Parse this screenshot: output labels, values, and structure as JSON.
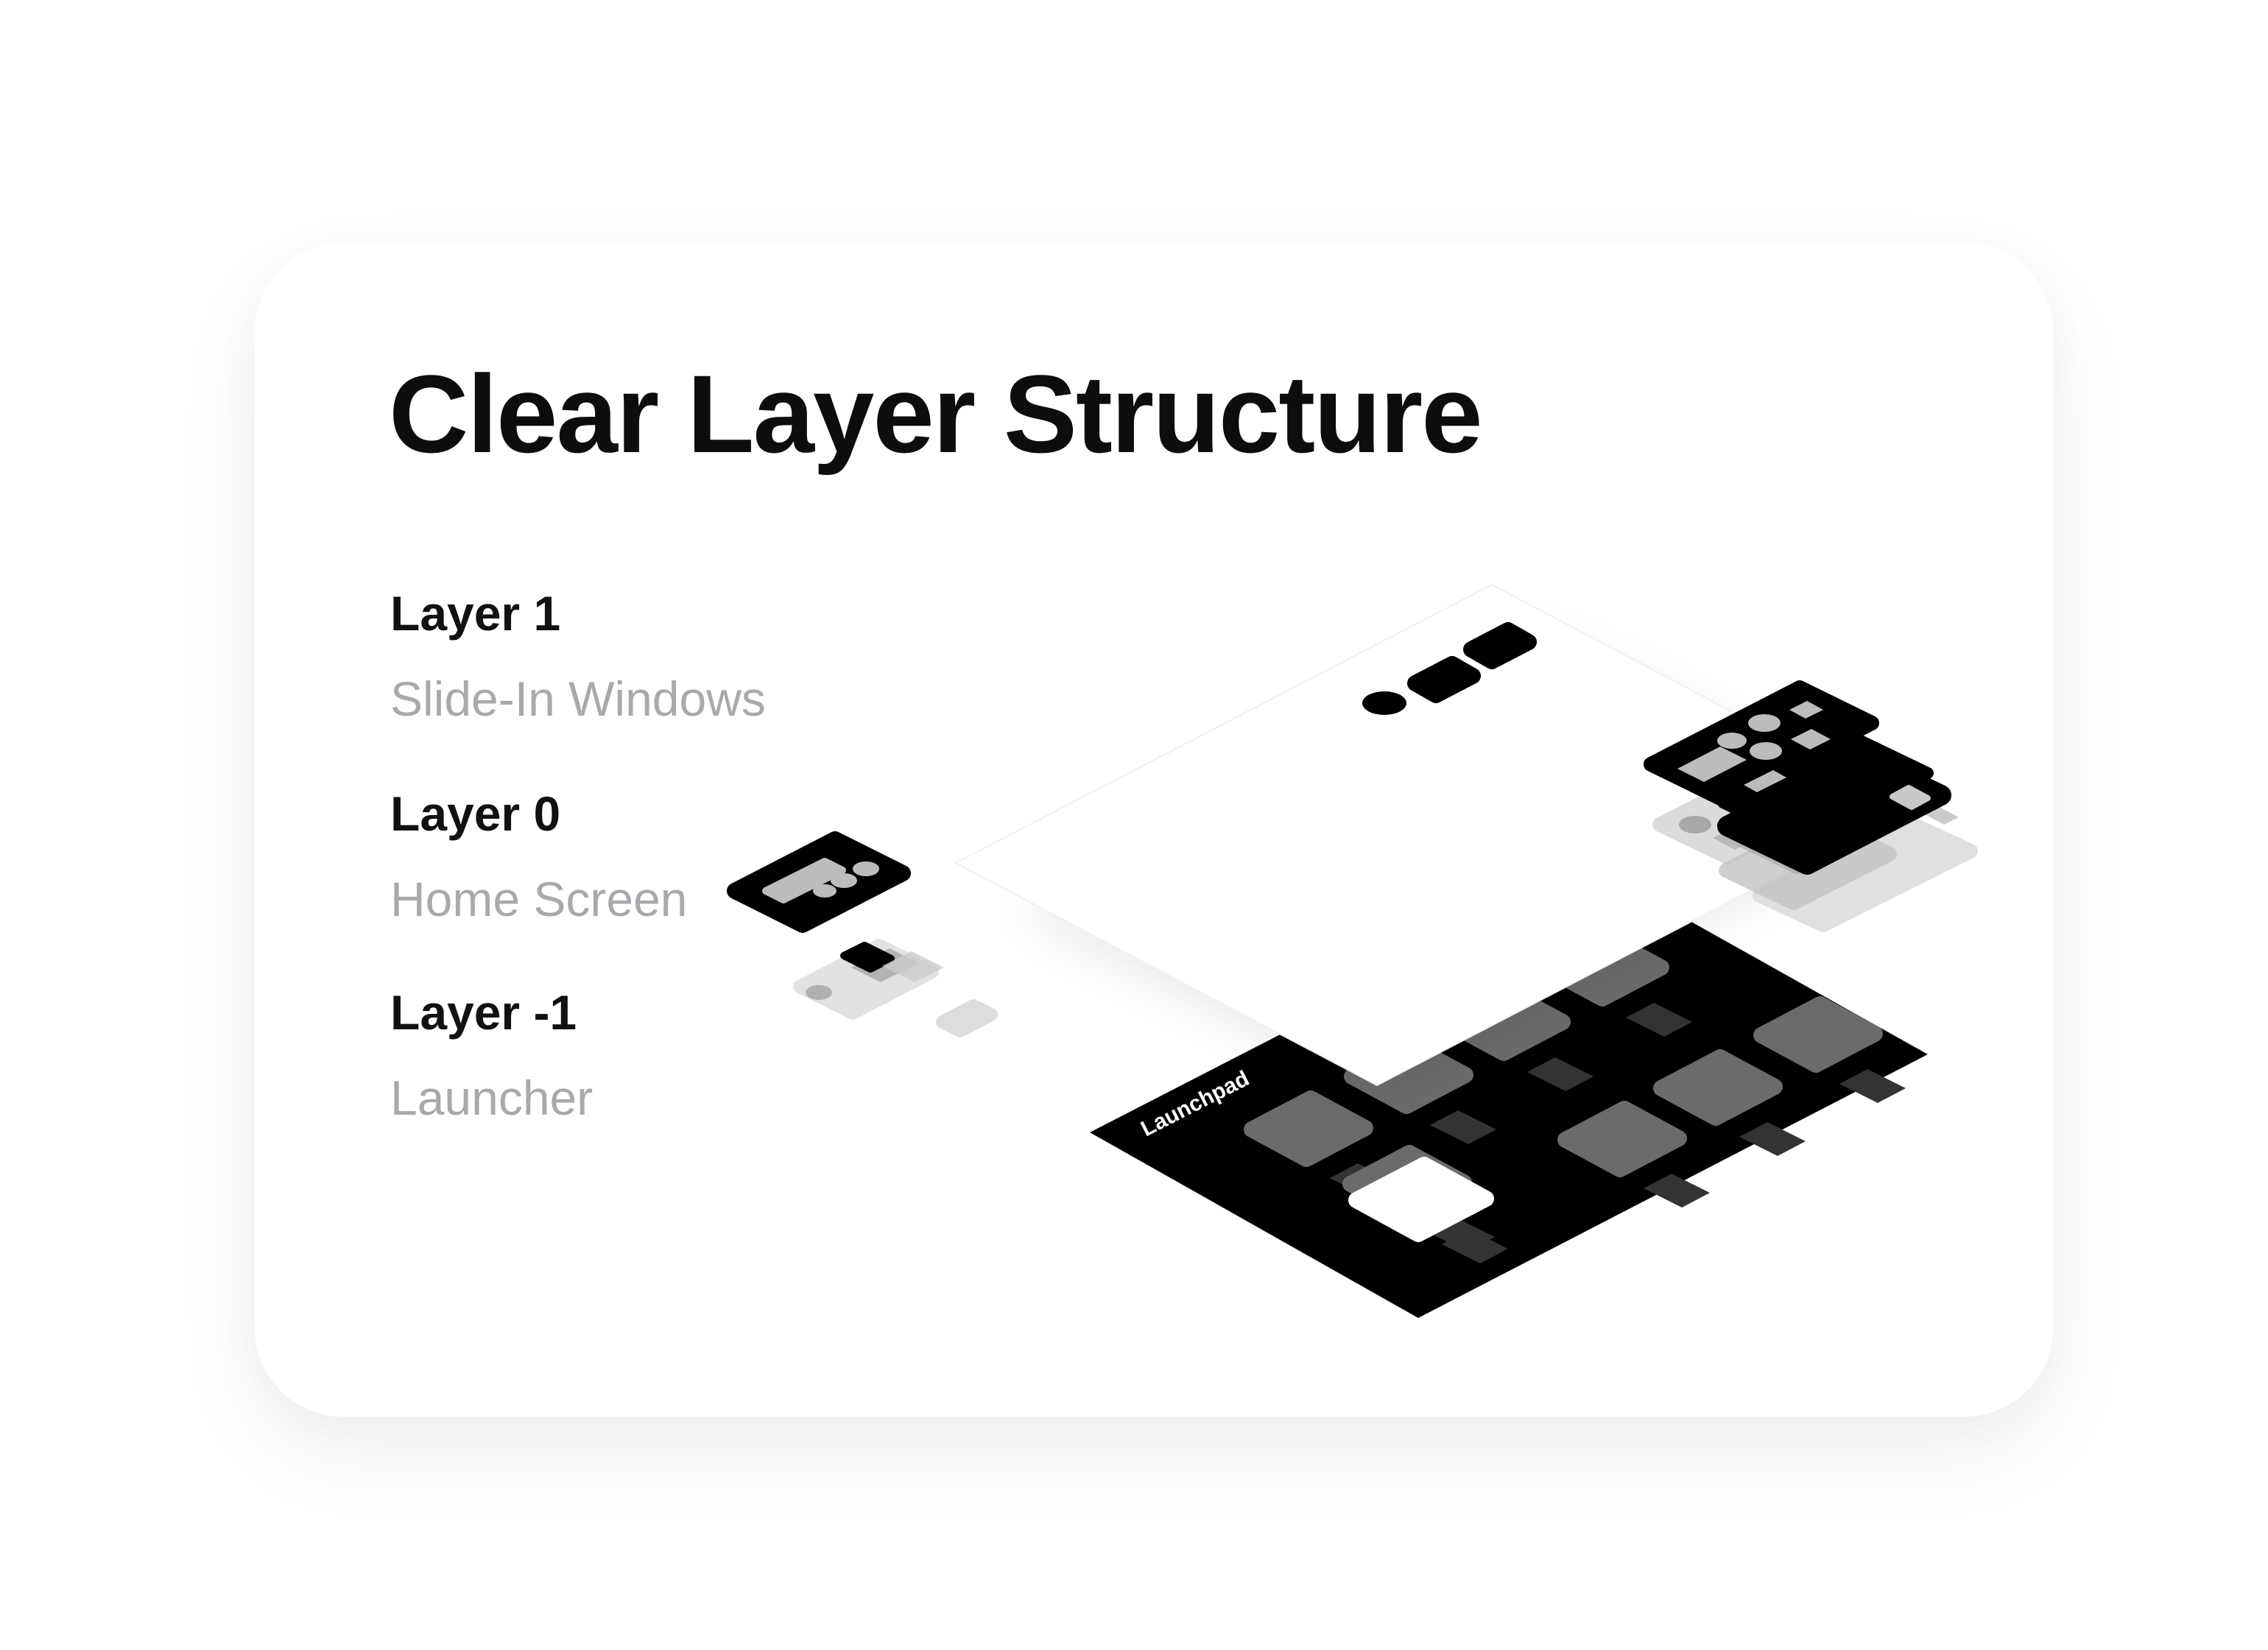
{
  "card": {
    "title": "Clear Layer Structure"
  },
  "layers": [
    {
      "name": "Layer 1",
      "description": "Slide-In Windows"
    },
    {
      "name": "Layer 0",
      "description": "Home Screen"
    },
    {
      "name": "Layer -1",
      "description": "Launcher"
    }
  ],
  "illustration": {
    "launcher_label": "Launchpad"
  },
  "colors": {
    "title": "#0d0d0f",
    "layer_name": "#111113",
    "layer_description": "#a9a9ad",
    "launcher_surface": "#000000",
    "home_surface": "#ffffff"
  }
}
